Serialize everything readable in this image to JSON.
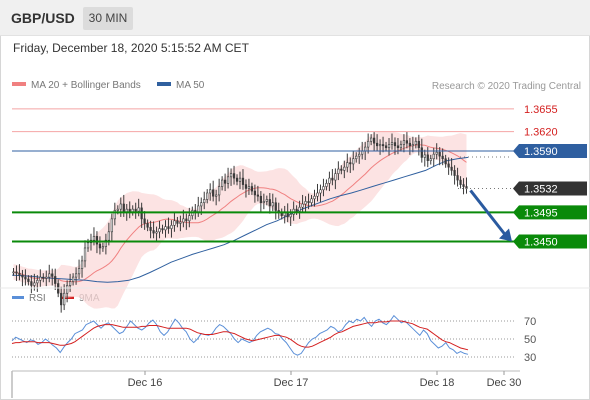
{
  "header": {
    "symbol": "GBP/USD",
    "timeframe": "30 MIN"
  },
  "datetime": "Friday, December 18, 2020 5:15:52 AM CET",
  "legend": {
    "ma20": {
      "label": "MA 20 + Bollinger Bands",
      "color": "#f08080"
    },
    "ma50": {
      "label": "MA 50",
      "color": "#30609f"
    }
  },
  "copyright": "Research © 2020 Trading Central",
  "rsi_legend": {
    "rsi": {
      "label": "RSI",
      "color": "#5a8fd8"
    },
    "ma9": {
      "label": "9MA",
      "color": "#d42020"
    }
  },
  "colors": {
    "resistance": "#f4a5a5",
    "pivot_blue": "#2f5fa0",
    "support": "#0a8a0a",
    "current_price": "#333333",
    "arrow": "#2a5aa0",
    "bollinger_fill": "#fbdada",
    "candle": "#3a3a3a"
  },
  "chart_data": [
    {
      "type": "candlestick",
      "title": "GBP/USD 30 MIN",
      "x_ticks": [
        "Dec 16",
        "Dec 17",
        "Dec 18",
        "Dec 30"
      ],
      "ylim": [
        1.3375,
        1.3675
      ],
      "price_levels": [
        {
          "value": 1.3655,
          "label": "1.3655",
          "kind": "resistance"
        },
        {
          "value": 1.362,
          "label": "1.3620",
          "kind": "resistance"
        },
        {
          "value": 1.359,
          "label": "1.3590",
          "kind": "pivot"
        },
        {
          "value": 1.3532,
          "label": "1.3532",
          "kind": "current"
        },
        {
          "value": 1.3495,
          "label": "1.3495",
          "kind": "support"
        },
        {
          "value": 1.345,
          "label": "1.3450",
          "kind": "support"
        }
      ],
      "close_series": [
        1.3403,
        1.3401,
        1.3398,
        1.3395,
        1.3392,
        1.3388,
        1.3382,
        1.3386,
        1.339,
        1.3395,
        1.3393,
        1.3395,
        1.34,
        1.3396,
        1.3385,
        1.337,
        1.3352,
        1.337,
        1.3382,
        1.3388,
        1.3395,
        1.34,
        1.3408,
        1.342,
        1.344,
        1.3448,
        1.3452,
        1.3458,
        1.3446,
        1.344,
        1.3442,
        1.3452,
        1.3465,
        1.3485,
        1.3498,
        1.35,
        1.3508,
        1.3496,
        1.35,
        1.3496,
        1.35,
        1.3497,
        1.3502,
        1.3485,
        1.3478,
        1.3472,
        1.3467,
        1.3463,
        1.3465,
        1.347,
        1.3468,
        1.3473,
        1.347,
        1.3475,
        1.3482,
        1.3478,
        1.348,
        1.3485,
        1.3482,
        1.349,
        1.3498,
        1.3496,
        1.3505,
        1.351,
        1.3515,
        1.3525,
        1.353,
        1.352,
        1.3522,
        1.3535,
        1.3545,
        1.354,
        1.355,
        1.3555,
        1.3548,
        1.3543,
        1.3548,
        1.3538,
        1.3532,
        1.3535,
        1.3528,
        1.3522,
        1.352,
        1.351,
        1.3512,
        1.3515,
        1.3505,
        1.351,
        1.3498,
        1.3495,
        1.349,
        1.3495,
        1.3488,
        1.3492,
        1.35,
        1.3497,
        1.3503,
        1.3508,
        1.3512,
        1.351,
        1.3516,
        1.352,
        1.3525,
        1.353,
        1.3535,
        1.354,
        1.3548,
        1.3545,
        1.3555,
        1.3562,
        1.356,
        1.3565,
        1.3572,
        1.357,
        1.3578,
        1.3582,
        1.3585,
        1.359,
        1.3596,
        1.3605,
        1.361,
        1.3602,
        1.3598,
        1.36,
        1.3598,
        1.3595,
        1.36,
        1.3603,
        1.3598,
        1.3595,
        1.36,
        1.3606,
        1.3602,
        1.3598,
        1.36,
        1.3605,
        1.3595,
        1.358,
        1.3584,
        1.3575,
        1.3578,
        1.3585,
        1.3588,
        1.3582,
        1.3578,
        1.357,
        1.3565,
        1.356,
        1.3552,
        1.3545,
        1.3538,
        1.3535,
        1.3532
      ],
      "ma50_series": [
        1.3398,
        1.3397,
        1.3396,
        1.3394,
        1.3393,
        1.3392,
        1.3391,
        1.339,
        1.3388,
        1.3387,
        1.3388,
        1.339,
        1.3395,
        1.3402,
        1.341,
        1.3418,
        1.3424,
        1.343,
        1.3435,
        1.344,
        1.3445,
        1.3452,
        1.346,
        1.3468,
        1.3476,
        1.3482,
        1.349,
        1.3498,
        1.3504,
        1.351,
        1.3516,
        1.3521,
        1.3525,
        1.353,
        1.3535,
        1.354,
        1.3545,
        1.355,
        1.3555,
        1.356,
        1.3568,
        1.3575,
        1.3578,
        1.358
      ],
      "rsi_panel": {
        "levels": [
          70,
          50,
          30
        ],
        "ylim": [
          20,
          80
        ],
        "rsi": [
          48,
          52,
          50,
          48,
          46,
          49,
          48,
          44,
          46,
          50,
          47,
          43,
          40,
          35,
          41,
          46,
          50,
          56,
          58,
          60,
          66,
          68,
          70,
          66,
          62,
          66,
          68,
          64,
          60,
          56,
          58,
          64,
          70,
          66,
          62,
          60,
          63,
          68,
          71,
          66,
          58,
          54,
          58,
          65,
          72,
          68,
          62,
          58,
          50,
          46,
          50,
          56,
          55,
          54,
          56,
          62,
          66,
          64,
          60,
          56,
          50,
          46,
          50,
          48,
          46,
          48,
          54,
          58,
          60,
          62,
          60,
          56,
          55,
          50,
          46,
          40,
          34,
          32,
          34,
          40,
          46,
          50,
          52,
          56,
          58,
          60,
          64,
          62,
          58,
          60,
          66,
          70,
          68,
          72,
          70,
          74,
          68,
          64,
          70,
          72,
          68,
          66,
          70,
          76,
          72,
          68,
          70,
          66,
          62,
          58,
          54,
          60,
          56,
          48,
          44,
          40,
          42,
          46,
          40,
          38,
          34,
          36,
          34,
          33
        ],
        "ma9": [
          45,
          46,
          46,
          47,
          47,
          47,
          47,
          46,
          46,
          46,
          46,
          45,
          44,
          43,
          43,
          44,
          45,
          47,
          50,
          53,
          56,
          59,
          62,
          64,
          65,
          66,
          66,
          66,
          65,
          64,
          63,
          63,
          63,
          63,
          63,
          64,
          64,
          65,
          65,
          65,
          64,
          63,
          62,
          62,
          62,
          62,
          62,
          62,
          61,
          59,
          57,
          56,
          55,
          55,
          55,
          56,
          57,
          58,
          58,
          57,
          56,
          54,
          52,
          50,
          49,
          48,
          49,
          50,
          51,
          52,
          53,
          54,
          54,
          53,
          52,
          50,
          47,
          44,
          42,
          41,
          41,
          42,
          44,
          46,
          48,
          50,
          52,
          55,
          57,
          58,
          60,
          62,
          64,
          65,
          66,
          67,
          68,
          68,
          68,
          69,
          69,
          69,
          70,
          70,
          70,
          70,
          69,
          68,
          67,
          65,
          63,
          62,
          61,
          58,
          55,
          52,
          49,
          47,
          46,
          44,
          42,
          40,
          39,
          38
        ]
      }
    }
  ]
}
